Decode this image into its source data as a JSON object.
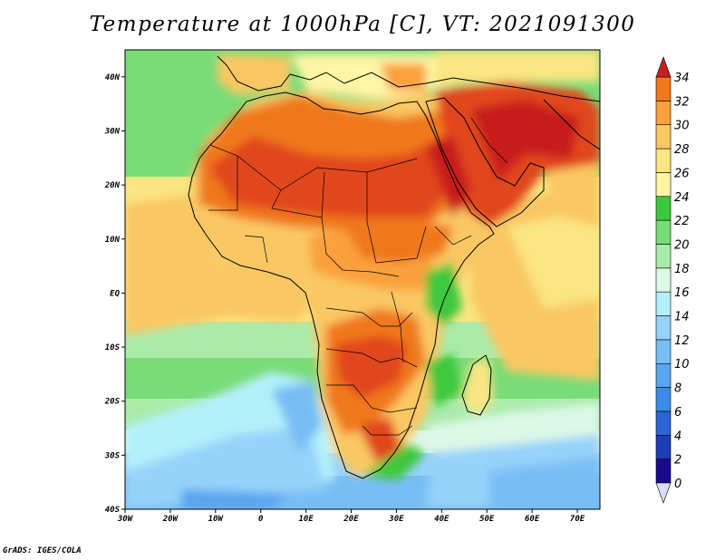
{
  "title": "Temperature at 1000hPa [C], VT: 2021091300",
  "credit": "GrADS: IGES/COLA",
  "map": {
    "lat_range": [
      -40,
      45
    ],
    "lon_range": [
      -30,
      75
    ],
    "lat_labels": [
      "40N",
      "30N",
      "20N",
      "10N",
      "EQ",
      "10S",
      "20S",
      "30S",
      "40S"
    ],
    "lat_values": [
      40,
      30,
      20,
      10,
      0,
      -10,
      -20,
      -30,
      -40
    ],
    "lon_labels": [
      "30W",
      "20W",
      "10W",
      "0",
      "10E",
      "20E",
      "30E",
      "40E",
      "50E",
      "60E",
      "70E"
    ],
    "lon_values": [
      -30,
      -20,
      -10,
      0,
      10,
      20,
      30,
      40,
      50,
      60,
      70
    ]
  },
  "colorbar": {
    "levels": [
      "0",
      "2",
      "4",
      "6",
      "8",
      "10",
      "12",
      "14",
      "16",
      "18",
      "20",
      "22",
      "24",
      "26",
      "28",
      "30",
      "32",
      "34"
    ],
    "colors": [
      "#1a0a8c",
      "#1e3cb4",
      "#2c64d2",
      "#3c8ce6",
      "#5aa5f0",
      "#78bef5",
      "#96d2fa",
      "#b4f0fa",
      "#dcf8e6",
      "#aaebaa",
      "#78dc78",
      "#3cc83c",
      "#fff5a5",
      "#fae682",
      "#fac864",
      "#faa03c",
      "#f0781e",
      "#e1461e",
      "#c81e1e"
    ],
    "under_color": "#dcdcff"
  }
}
